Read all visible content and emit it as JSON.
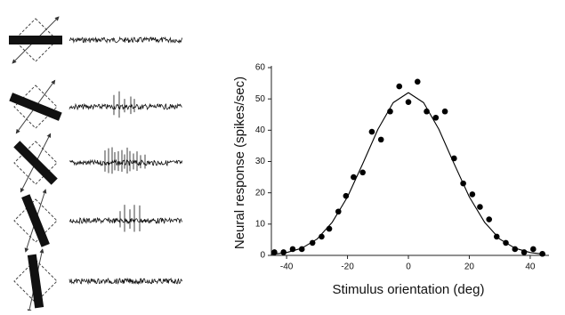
{
  "chart_data": {
    "type": "scatter",
    "xlabel": "Stimulus orientation (deg)",
    "ylabel": "Neural response (spikes/sec)",
    "xlim": [
      -45,
      45
    ],
    "ylim": [
      0,
      60
    ],
    "xticks": [
      -40,
      -20,
      0,
      20,
      40
    ],
    "yticks": [
      0,
      10,
      20,
      30,
      40,
      50,
      60
    ],
    "series": [
      {
        "color": "#000000",
        "style": "markers",
        "x": [
          -44,
          -41,
          -38,
          -35,
          -31.5,
          -28.5,
          -26,
          -23,
          -20.5,
          -18,
          -15,
          -12,
          -9,
          -6,
          -3,
          0,
          3,
          6,
          9,
          12,
          15,
          18,
          21,
          23.5,
          26.5,
          29,
          32,
          35,
          38,
          41,
          44
        ],
        "values": [
          1,
          1,
          2,
          2,
          4,
          6,
          8.5,
          14,
          19,
          25,
          26.5,
          39.5,
          37,
          46,
          54,
          49,
          55.5,
          46,
          44,
          46,
          31,
          23,
          19.5,
          15.5,
          11.5,
          6,
          4,
          2,
          1,
          2,
          0.5
        ]
      },
      {
        "color": "#000000",
        "style": "line",
        "x": [
          -45,
          -40,
          -35,
          -30,
          -25,
          -20,
          -15,
          -10,
          -5,
          0,
          5,
          10,
          15,
          20,
          25,
          30,
          35,
          40,
          45
        ],
        "values": [
          0.3,
          0.9,
          2.3,
          5.2,
          10.6,
          18.7,
          29.3,
          40.3,
          48.8,
          52,
          48.8,
          40.3,
          29.3,
          18.7,
          10.6,
          5.2,
          2.3,
          0.9,
          0.3
        ]
      }
    ]
  }
}
